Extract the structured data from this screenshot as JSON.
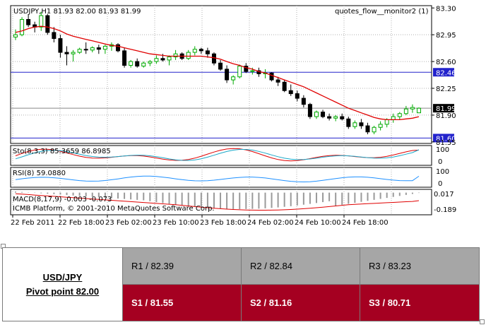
{
  "chart_data": {
    "type": "candlestick",
    "symbol_header": "USDJPY,H1  81.93 82.00 81.93 81.99",
    "indicator_label": "quotes_flow__monitor2 (1)",
    "x_tick_labels": [
      "22 Feb 2011",
      "22 Feb 18:00",
      "23 Feb 02:00",
      "23 Feb 10:00",
      "23 Feb 18:00",
      "24 Feb 02:00",
      "24 Feb 10:00",
      "24 Feb 18:00"
    ],
    "y_tick_labels": [
      "83.30",
      "82.95",
      "82.60",
      "82.25",
      "81.90",
      "81.55"
    ],
    "ylim": [
      81.53,
      83.33
    ],
    "price_tag": "81.99",
    "hlines": [
      {
        "value": 82.46,
        "label": "82.46",
        "color": "#2222cc"
      },
      {
        "value": 81.6,
        "label": "81.60",
        "color": "#2222cc"
      },
      {
        "value": 81.99,
        "label": "81.99",
        "color": "#888888"
      }
    ],
    "candles": [
      [
        82.92,
        83.02,
        82.88,
        82.95
      ],
      [
        82.95,
        83.18,
        82.93,
        83.15
      ],
      [
        83.15,
        83.22,
        83.05,
        83.08
      ],
      [
        83.08,
        83.12,
        82.98,
        83.05
      ],
      [
        83.05,
        83.25,
        83.0,
        83.2
      ],
      [
        83.2,
        83.22,
        82.95,
        82.98
      ],
      [
        82.98,
        83.05,
        82.85,
        82.9
      ],
      [
        82.9,
        82.95,
        82.65,
        82.72
      ],
      [
        82.72,
        82.8,
        82.55,
        82.7
      ],
      [
        82.7,
        82.75,
        82.6,
        82.72
      ],
      [
        82.72,
        82.78,
        82.7,
        82.76
      ],
      [
        82.76,
        82.85,
        82.7,
        82.75
      ],
      [
        82.75,
        82.8,
        82.72,
        82.78
      ],
      [
        82.78,
        82.82,
        82.7,
        82.76
      ],
      [
        82.76,
        82.82,
        82.7,
        82.8
      ],
      [
        82.8,
        82.85,
        82.74,
        82.82
      ],
      [
        82.82,
        82.84,
        82.72,
        82.74
      ],
      [
        82.74,
        82.78,
        82.52,
        82.55
      ],
      [
        82.55,
        82.62,
        82.52,
        82.6
      ],
      [
        82.6,
        82.64,
        82.52,
        82.54
      ],
      [
        82.54,
        82.6,
        82.52,
        82.58
      ],
      [
        82.58,
        82.62,
        82.54,
        82.6
      ],
      [
        82.6,
        82.68,
        82.57,
        82.64
      ],
      [
        82.64,
        82.7,
        82.6,
        82.62
      ],
      [
        82.62,
        82.68,
        82.55,
        82.66
      ],
      [
        82.66,
        82.75,
        82.62,
        82.7
      ],
      [
        82.7,
        82.72,
        82.62,
        82.64
      ],
      [
        82.64,
        82.75,
        82.62,
        82.72
      ],
      [
        82.72,
        82.8,
        82.68,
        82.76
      ],
      [
        82.76,
        82.78,
        82.7,
        82.74
      ],
      [
        82.74,
        82.78,
        82.65,
        82.7
      ],
      [
        82.7,
        82.72,
        82.55,
        82.58
      ],
      [
        82.58,
        82.62,
        82.48,
        82.5
      ],
      [
        82.5,
        82.55,
        82.32,
        82.36
      ],
      [
        82.36,
        82.42,
        82.3,
        82.4
      ],
      [
        82.4,
        82.56,
        82.38,
        82.54
      ],
      [
        82.54,
        82.58,
        82.45,
        82.47
      ],
      [
        82.47,
        82.52,
        82.43,
        82.48
      ],
      [
        82.48,
        82.52,
        82.4,
        82.44
      ],
      [
        82.44,
        82.5,
        82.38,
        82.45
      ],
      [
        82.45,
        82.46,
        82.34,
        82.36
      ],
      [
        82.36,
        82.4,
        82.28,
        82.33
      ],
      [
        82.33,
        82.36,
        82.2,
        82.22
      ],
      [
        82.22,
        82.3,
        82.15,
        82.18
      ],
      [
        82.18,
        82.22,
        82.08,
        82.12
      ],
      [
        82.12,
        82.16,
        82.0,
        82.04
      ],
      [
        82.04,
        82.06,
        81.85,
        81.88
      ],
      [
        81.88,
        81.96,
        81.85,
        81.94
      ],
      [
        81.94,
        81.97,
        81.86,
        81.88
      ],
      [
        81.88,
        81.92,
        81.83,
        81.86
      ],
      [
        81.86,
        81.9,
        81.82,
        81.88
      ],
      [
        81.88,
        81.92,
        81.83,
        81.85
      ],
      [
        81.85,
        81.88,
        81.72,
        81.75
      ],
      [
        81.75,
        81.83,
        81.72,
        81.8
      ],
      [
        81.8,
        81.85,
        81.72,
        81.76
      ],
      [
        81.76,
        81.8,
        81.65,
        81.68
      ],
      [
        81.68,
        81.76,
        81.65,
        81.74
      ],
      [
        81.74,
        81.82,
        81.7,
        81.78
      ],
      [
        81.78,
        81.86,
        81.74,
        81.84
      ],
      [
        81.84,
        81.92,
        81.8,
        81.88
      ],
      [
        81.88,
        81.94,
        81.84,
        81.92
      ],
      [
        81.92,
        82.02,
        81.9,
        81.98
      ],
      [
        81.98,
        82.04,
        81.93,
        82.0
      ],
      [
        81.93,
        82.0,
        81.93,
        81.99
      ]
    ],
    "ma_values": [
      82.98,
      83.0,
      83.03,
      83.05,
      83.06,
      83.05,
      83.03,
      83.0,
      82.96,
      82.93,
      82.91,
      82.89,
      82.87,
      82.85,
      82.83,
      82.81,
      82.8,
      82.78,
      82.76,
      82.74,
      82.72,
      82.7,
      82.69,
      82.68,
      82.67,
      82.67,
      82.67,
      82.67,
      82.67,
      82.67,
      82.66,
      82.65,
      82.63,
      82.6,
      82.57,
      82.55,
      82.52,
      82.5,
      82.47,
      82.45,
      82.42,
      82.39,
      82.36,
      82.33,
      82.3,
      82.27,
      82.23,
      82.19,
      82.15,
      82.11,
      82.07,
      82.03,
      81.99,
      81.96,
      81.93,
      81.9,
      81.87,
      81.85,
      81.84,
      81.84,
      81.84,
      81.85,
      81.86,
      81.88
    ],
    "stoch": {
      "label": "Sto(8,3,3) 85.3659 86.8985",
      "ticks": [
        "100",
        "0"
      ]
    },
    "rsi": {
      "label": "RSI(8) 59.0880",
      "ticks": [
        "100",
        "0"
      ]
    },
    "macd": {
      "label": "MACD(8,17,9) -0.003 -0.073",
      "ticks": [
        "0.017",
        "-0.189"
      ]
    },
    "watermark": "ICMB Platform, © 2001-2010 MetaQuotes Software Corp."
  },
  "pivot_table": {
    "pair": "USD/JPY",
    "pivot": "Pivot point 82.00",
    "resistances": [
      "R1 / 82.39",
      "R2 / 82.84",
      "R3 / 83.23"
    ],
    "supports": [
      "S1 / 81.55",
      "S2 / 81.16",
      "S3 / 80.71"
    ]
  },
  "colors": {
    "bull": "#00aa00",
    "bear": "#000000",
    "ma": "#e00000",
    "hline": "#2222cc",
    "resistance_bg": "#a6a6a6",
    "support_bg": "#a50021"
  }
}
